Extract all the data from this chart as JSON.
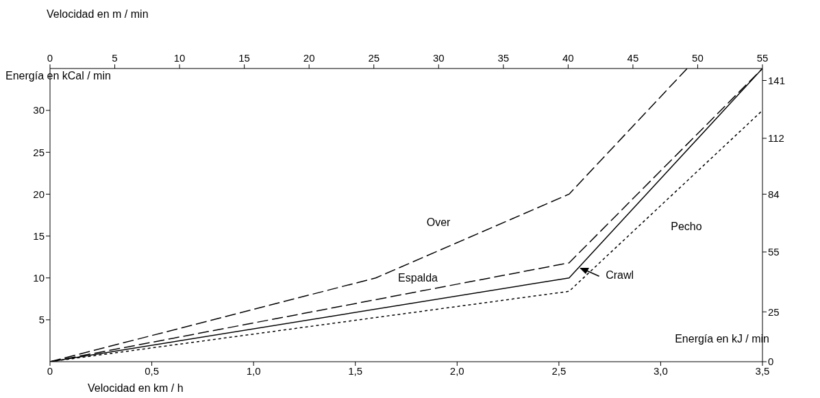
{
  "chart_data": {
    "type": "line",
    "xlabel": "Velocidad en km / h",
    "x2label": "Velocidad en m / min",
    "ylabel": "Energía en kCal / min",
    "y2label": "Energía en kJ /  min",
    "xlim": [
      0,
      3.5
    ],
    "xticks": [
      0,
      {
        "value": 0.5,
        "label": "0,5"
      },
      {
        "value": 1,
        "label": "1,0"
      },
      {
        "value": 1.5,
        "label": "1,5"
      },
      {
        "value": 2,
        "label": "2,0"
      },
      {
        "value": 2.5,
        "label": "2,5"
      },
      {
        "value": 3,
        "label": "3,0"
      },
      {
        "value": 3.5,
        "label": "3,5"
      }
    ],
    "x2lim": [
      0,
      55
    ],
    "x2ticks": [
      0,
      5,
      10,
      15,
      20,
      25,
      30,
      35,
      40,
      45,
      50,
      55
    ],
    "ylim": [
      0,
      35
    ],
    "yticks": [
      5,
      10,
      15,
      20,
      25,
      30
    ],
    "y2lim": [
      0,
      147
    ],
    "y2ticks": [
      0,
      25,
      55,
      84,
      112,
      141
    ],
    "series": [
      {
        "name": "Over",
        "color": "#000000",
        "line_style": "dashed",
        "x": [
          0,
          1.6,
          2.55,
          3.13
        ],
        "values": [
          0,
          10,
          20,
          35
        ]
      },
      {
        "name": "Espalda",
        "color": "#000000",
        "line_style": "dashed",
        "x": [
          0,
          2.55,
          3.5
        ],
        "values": [
          0,
          11.8,
          35
        ]
      },
      {
        "name": "Crawl",
        "color": "#000000",
        "line_style": "solid",
        "x": [
          0,
          2.55,
          3.5
        ],
        "values": [
          0,
          10,
          35
        ]
      },
      {
        "name": "Pecho",
        "color": "#000000",
        "line_style": "dotted",
        "x": [
          0,
          2.55,
          3.5
        ],
        "values": [
          0,
          8.4,
          30
        ]
      }
    ]
  }
}
